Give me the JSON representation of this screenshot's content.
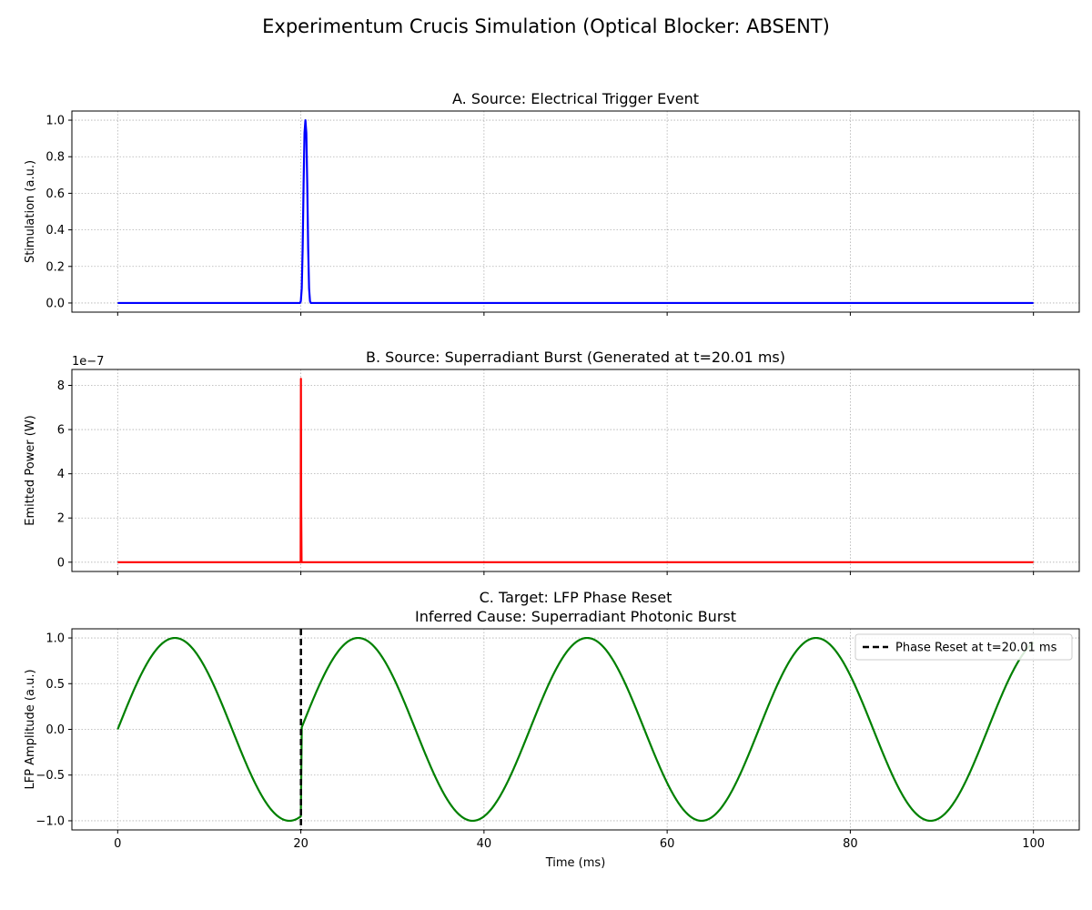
{
  "figure": {
    "suptitle": "Experimentum Crucis Simulation (Optical Blocker: ABSENT)"
  },
  "chart_data": [
    {
      "type": "line",
      "title": "A. Source: Electrical Trigger Event",
      "xlabel": "",
      "ylabel": "Stimulation (a.u.)",
      "xlim": [
        -5,
        105
      ],
      "ylim": [
        -0.05,
        1.05
      ],
      "xticks": [
        0,
        20,
        40,
        60,
        80,
        100
      ],
      "yticks": [
        0.0,
        0.2,
        0.4,
        0.6,
        0.8,
        1.0
      ],
      "ytick_labels": [
        "0.0",
        "0.2",
        "0.4",
        "0.6",
        "0.8",
        "1.0"
      ],
      "x_tick_labels_shown": false,
      "grid": true,
      "series": [
        {
          "color": "#0000ff",
          "x": [
            0,
            19.9,
            20.0,
            20.1,
            20.2,
            20.3,
            20.4,
            20.5,
            20.6,
            20.7,
            20.8,
            20.9,
            21.0,
            21.1,
            100
          ],
          "y": [
            0,
            0,
            0.01,
            0.08,
            0.3,
            0.65,
            0.93,
            1.0,
            0.93,
            0.65,
            0.3,
            0.08,
            0.01,
            0,
            0
          ]
        }
      ]
    },
    {
      "type": "line",
      "title": "B. Source: Superradiant Burst (Generated at t=20.01 ms)",
      "xlabel": "",
      "ylabel": "Emitted Power (W)",
      "offset_text": "1e−7",
      "xlim": [
        -5,
        105
      ],
      "ylim": [
        -0.42,
        8.72
      ],
      "xticks": [
        0,
        20,
        40,
        60,
        80,
        100
      ],
      "yticks": [
        0,
        2,
        4,
        6,
        8
      ],
      "ytick_labels": [
        "0",
        "2",
        "4",
        "6",
        "8"
      ],
      "x_tick_labels_shown": false,
      "grid": true,
      "series": [
        {
          "color": "#ff0000",
          "x": [
            0,
            19.98,
            20.0,
            20.01,
            20.04,
            20.08,
            100
          ],
          "y": [
            0,
            0,
            6.0,
            8.3,
            2.5,
            0,
            0
          ]
        }
      ]
    },
    {
      "type": "line",
      "title": "C. Target: LFP Phase Reset\nInferred Cause: Superradiant Photonic Burst",
      "xlabel": "Time (ms)",
      "ylabel": "LFP Amplitude (a.u.)",
      "xlim": [
        -5,
        105
      ],
      "ylim": [
        -1.1,
        1.1
      ],
      "xticks": [
        0,
        20,
        40,
        60,
        80,
        100
      ],
      "xtick_labels": [
        "0",
        "20",
        "40",
        "60",
        "80",
        "100"
      ],
      "yticks": [
        -1.0,
        -0.5,
        0.0,
        0.5,
        1.0
      ],
      "ytick_labels": [
        "−1.0",
        "−0.5",
        "0.0",
        "0.5",
        "1.0"
      ],
      "x_tick_labels_shown": true,
      "grid": true,
      "frequency_hz": 40,
      "reset_time_ms": 20.01,
      "legend": {
        "position": "top-right",
        "entries": [
          "Phase Reset at t=20.01 ms"
        ]
      },
      "series": [
        {
          "color": "#008000",
          "function": "sine_with_phase_reset"
        }
      ],
      "vline": {
        "x": 20.01,
        "color": "#000000",
        "style": "dashed",
        "label": "Phase Reset at t=20.01 ms"
      }
    }
  ]
}
